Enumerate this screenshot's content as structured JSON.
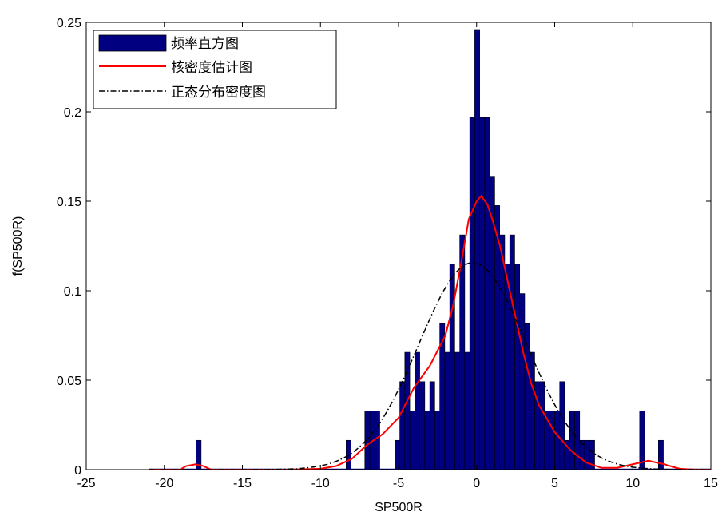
{
  "chart_data": {
    "type": "bar",
    "xlabel": "SP500R",
    "ylabel": "f(SP500R)",
    "xlim": [
      -25,
      15
    ],
    "ylim": [
      0,
      0.25
    ],
    "xticks": [
      -25,
      -20,
      -15,
      -10,
      -5,
      0,
      5,
      10,
      15
    ],
    "yticks": [
      0,
      0.05,
      0.1,
      0.15,
      0.2,
      0.25
    ],
    "xtick_labels": [
      "-25",
      "-20",
      "-15",
      "-10",
      "-5",
      "0",
      "5",
      "10",
      "15"
    ],
    "ytick_labels": [
      "0",
      "0.05",
      "0.1",
      "0.15",
      "0.2",
      "0.25"
    ],
    "grid": false,
    "legend_position": "top-left",
    "series": [
      {
        "name": "频率直方图",
        "kind": "histogram",
        "color": "#000080",
        "bin_width": 0.32,
        "bins": [
          {
            "x": -17.8,
            "y": 0.0164
          },
          {
            "x": -8.2,
            "y": 0.0164
          },
          {
            "x": -7.0,
            "y": 0.0328
          },
          {
            "x": -6.68,
            "y": 0.0328
          },
          {
            "x": -6.36,
            "y": 0.0328
          },
          {
            "x": -5.08,
            "y": 0.0164
          },
          {
            "x": -4.76,
            "y": 0.0492
          },
          {
            "x": -4.44,
            "y": 0.0656
          },
          {
            "x": -4.12,
            "y": 0.0328
          },
          {
            "x": -3.8,
            "y": 0.0656
          },
          {
            "x": -3.48,
            "y": 0.0492
          },
          {
            "x": -3.16,
            "y": 0.0328
          },
          {
            "x": -2.84,
            "y": 0.0492
          },
          {
            "x": -2.52,
            "y": 0.0328
          },
          {
            "x": -2.2,
            "y": 0.082
          },
          {
            "x": -1.88,
            "y": 0.0656
          },
          {
            "x": -1.56,
            "y": 0.1148
          },
          {
            "x": -1.24,
            "y": 0.0656
          },
          {
            "x": -0.92,
            "y": 0.1312
          },
          {
            "x": -0.6,
            "y": 0.0656
          },
          {
            "x": -0.28,
            "y": 0.1968
          },
          {
            "x": 0.04,
            "y": 0.246
          },
          {
            "x": 0.36,
            "y": 0.1968
          },
          {
            "x": 0.68,
            "y": 0.1968
          },
          {
            "x": 1.0,
            "y": 0.164
          },
          {
            "x": 1.32,
            "y": 0.1476
          },
          {
            "x": 1.64,
            "y": 0.1312
          },
          {
            "x": 1.96,
            "y": 0.1148
          },
          {
            "x": 2.28,
            "y": 0.1312
          },
          {
            "x": 2.6,
            "y": 0.1148
          },
          {
            "x": 2.92,
            "y": 0.0984
          },
          {
            "x": 3.24,
            "y": 0.082
          },
          {
            "x": 3.56,
            "y": 0.0656
          },
          {
            "x": 3.88,
            "y": 0.0492
          },
          {
            "x": 4.2,
            "y": 0.0492
          },
          {
            "x": 4.52,
            "y": 0.0328
          },
          {
            "x": 4.84,
            "y": 0.0328
          },
          {
            "x": 5.16,
            "y": 0.0328
          },
          {
            "x": 5.48,
            "y": 0.0492
          },
          {
            "x": 5.8,
            "y": 0.0164
          },
          {
            "x": 6.12,
            "y": 0.0328
          },
          {
            "x": 6.44,
            "y": 0.0328
          },
          {
            "x": 6.76,
            "y": 0.0164
          },
          {
            "x": 7.08,
            "y": 0.0164
          },
          {
            "x": 7.4,
            "y": 0.0164
          },
          {
            "x": 10.6,
            "y": 0.0328
          },
          {
            "x": 11.8,
            "y": 0.0164
          }
        ]
      },
      {
        "name": "核密度估计图",
        "kind": "line",
        "color": "#ff0000",
        "style": "solid",
        "points": [
          [
            -21,
            0.0
          ],
          [
            -19,
            0.0
          ],
          [
            -18.6,
            0.002
          ],
          [
            -18,
            0.003
          ],
          [
            -17.5,
            0.002
          ],
          [
            -17,
            0.0
          ],
          [
            -12,
            0.0
          ],
          [
            -10,
            0.0005
          ],
          [
            -9,
            0.002
          ],
          [
            -8,
            0.006
          ],
          [
            -7,
            0.014
          ],
          [
            -6,
            0.02
          ],
          [
            -5,
            0.029
          ],
          [
            -4,
            0.046
          ],
          [
            -3,
            0.058
          ],
          [
            -2,
            0.075
          ],
          [
            -1.5,
            0.092
          ],
          [
            -1,
            0.115
          ],
          [
            -0.5,
            0.14
          ],
          [
            0,
            0.15
          ],
          [
            0.3,
            0.153
          ],
          [
            0.7,
            0.148
          ],
          [
            1,
            0.14
          ],
          [
            1.5,
            0.125
          ],
          [
            2,
            0.105
          ],
          [
            2.5,
            0.085
          ],
          [
            3,
            0.065
          ],
          [
            3.5,
            0.048
          ],
          [
            4,
            0.036
          ],
          [
            5,
            0.021
          ],
          [
            6,
            0.011
          ],
          [
            7,
            0.004
          ],
          [
            8,
            0.001
          ],
          [
            9,
            0.001
          ],
          [
            10,
            0.003
          ],
          [
            11,
            0.005
          ],
          [
            12,
            0.003
          ],
          [
            13,
            0.0005
          ],
          [
            14,
            0.0
          ],
          [
            15,
            0.0
          ]
        ]
      },
      {
        "name": "正态分布密度图",
        "kind": "line",
        "color": "#000000",
        "style": "dashdot",
        "mean": -0.25,
        "sd": 3.45,
        "x_range": [
          -21,
          15
        ]
      }
    ]
  }
}
